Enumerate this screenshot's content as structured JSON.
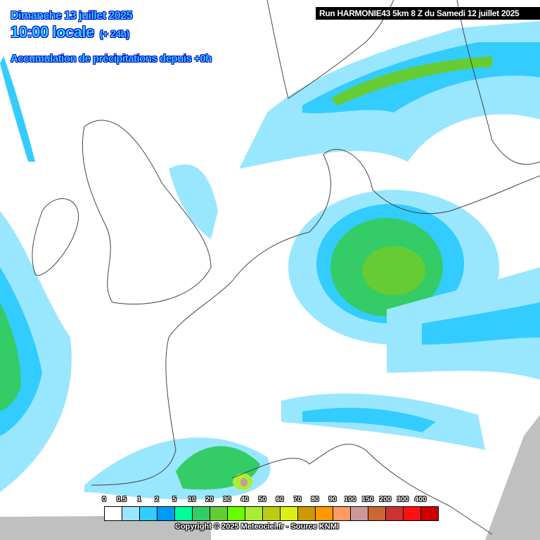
{
  "header": {
    "date": "Dimanche 13 juillet 2025",
    "time": "10:00 locale",
    "lead": "(+ 24h)",
    "product": "Accumulation de précipitations depuis +0h"
  },
  "run_info": "Run HARMONIE43 5km 8 Z du Samedi 12 juillet 2025",
  "legend": {
    "labels": [
      "0",
      "0.5",
      "1",
      "2",
      "5",
      "10",
      "20",
      "30",
      "40",
      "50",
      "60",
      "70",
      "80",
      "90",
      "100",
      "150",
      "200",
      "300",
      "400"
    ],
    "colors": [
      "#ffffff",
      "#99e6ff",
      "#33ccff",
      "#0099ff",
      "#00ff99",
      "#33cc66",
      "#66cc33",
      "#66ff00",
      "#aaee33",
      "#bbcc11",
      "#ddee11",
      "#cc9900",
      "#ff9900",
      "#ff9966",
      "#cc9999",
      "#cc6633",
      "#cc3333",
      "#ff1111",
      "#cc0000"
    ]
  },
  "copyright": "Copyright © 2025 Meteociel.fr - Source KNMI"
}
